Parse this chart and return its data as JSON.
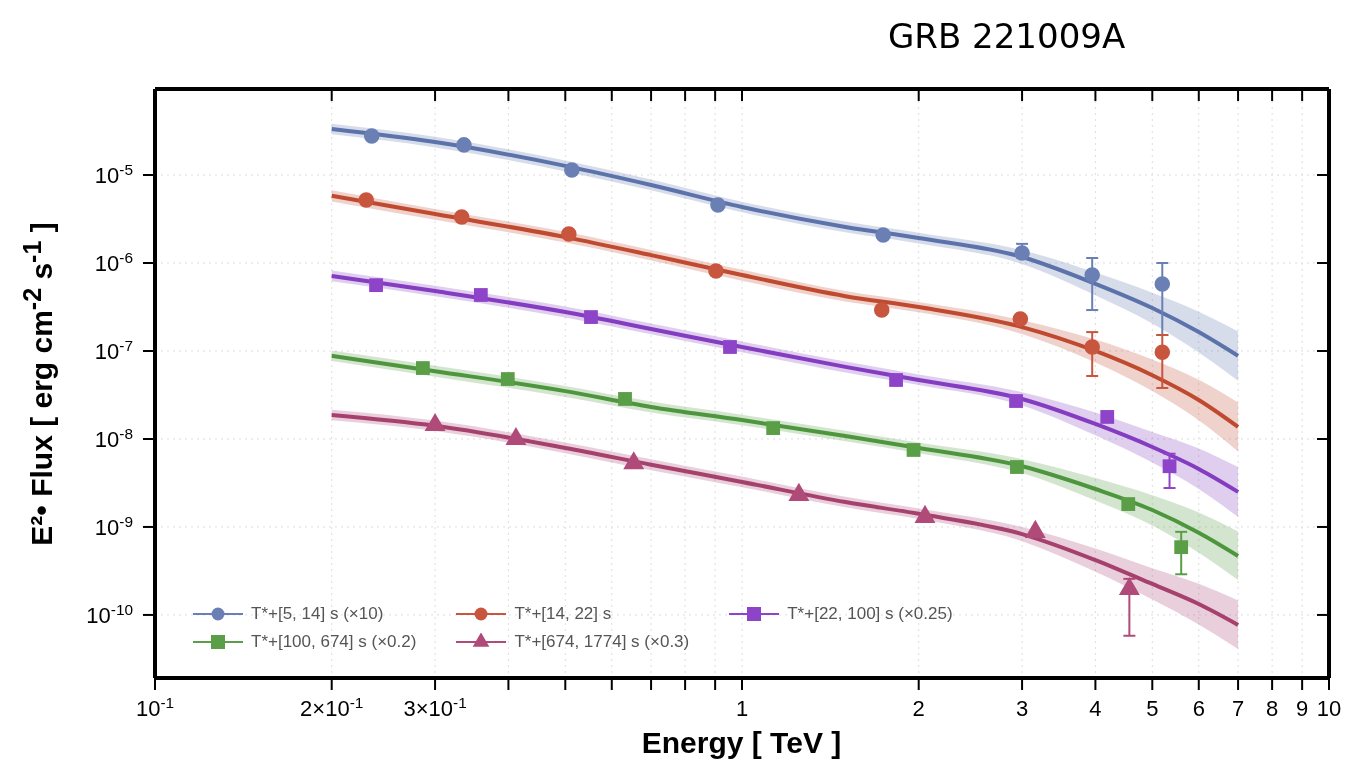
{
  "chart_data": {
    "type": "scatter",
    "title": "GRB 221009A",
    "xlabel": "Energy [ TeV ]",
    "ylabel": "E²• Flux [ erg cm$^{-2}$ s$^{-1}$ ]",
    "log": "xy",
    "grid": true,
    "legend": "bottom left",
    "xlim": [
      0.1,
      10
    ],
    "xticks": [
      {
        "value": 0.1,
        "label": "10$^{-1}$"
      },
      {
        "value": 0.2,
        "label": "2×10$^{-1}$"
      },
      {
        "value": 0.3,
        "label": "3×10$^{-1}$"
      },
      {
        "value": 0.4,
        "label": null
      },
      {
        "value": 0.5,
        "label": null
      },
      {
        "value": 0.6,
        "label": null
      },
      {
        "value": 0.7,
        "label": null
      },
      {
        "value": 0.8,
        "label": null
      },
      {
        "value": 0.9,
        "label": null
      },
      1,
      2,
      3,
      4,
      5,
      6,
      7,
      8,
      9,
      10
    ],
    "ylim": [
      1.92e-11,
      9.5e-05
    ],
    "yticks": [
      {
        "value": 1e-10,
        "label": "10$^{-10}$"
      },
      {
        "value": 1e-09,
        "label": "10$^{-9}$"
      },
      {
        "value": 1e-08,
        "label": "10$^{-8}$"
      },
      {
        "value": 1e-07,
        "label": "10$^{-7}$"
      },
      {
        "value": 1e-06,
        "label": "10$^{-6}$"
      },
      {
        "value": 1e-05,
        "label": "10$^{-5}$"
      }
    ],
    "series": [
      {
        "type": "line",
        "color": "#5c72aa",
        "x": [
          0.2,
          0.3,
          0.5,
          0.7,
          1,
          1.5,
          2,
          3,
          4,
          5,
          6,
          7
        ],
        "values": [
          3.33e-05,
          2.37e-05,
          1.27e-05,
          7.7e-06,
          4.33e-06,
          2.57e-06,
          1.92e-06,
          1.17e-06,
          5.8e-07,
          3.08e-07,
          1.64e-07,
          8.8e-08
        ],
        "lower": [
          2.9e-05,
          2.06e-05,
          1.1e-05,
          6.7e-06,
          3.77e-06,
          2.23e-06,
          1.67e-06,
          9.75e-07,
          4.3e-07,
          2.05e-07,
          9.6e-08,
          4.6e-08
        ],
        "upper": [
          3.83e-05,
          2.73e-05,
          1.46e-05,
          8.9e-06,
          4.98e-06,
          2.96e-06,
          2.21e-06,
          1.4e-06,
          7.8e-07,
          4.6e-07,
          2.8e-07,
          1.67e-07
        ]
      },
      {
        "type": "line",
        "color": "#c04a2f",
        "x": [
          0.2,
          0.3,
          0.5,
          0.7,
          1,
          1.5,
          2,
          3,
          4,
          5,
          6,
          7
        ],
        "values": [
          5.8e-06,
          3.6e-06,
          1.97e-06,
          1.23e-06,
          7.3e-07,
          4.2e-07,
          3.16e-07,
          1.87e-07,
          1e-07,
          5.3e-08,
          2.77e-08,
          1.37e-08
        ],
        "lower": [
          5e-06,
          3.1e-06,
          1.71e-06,
          1.07e-06,
          6.3e-07,
          3.65e-07,
          2.75e-07,
          1.56e-07,
          7.4e-08,
          3.5e-08,
          1.63e-08,
          7.2e-09
        ],
        "upper": [
          6.7e-06,
          4.1e-06,
          2.27e-06,
          1.41e-06,
          8.4e-07,
          4.8e-07,
          3.6e-07,
          2.24e-07,
          1.35e-07,
          8e-08,
          4.7e-08,
          2.6e-08
        ]
      },
      {
        "type": "line",
        "color": "#843cc0",
        "x": [
          0.2,
          0.3,
          0.5,
          0.7,
          1,
          1.5,
          2,
          3,
          4,
          5,
          6,
          7
        ],
        "values": [
          7.1e-07,
          4.8e-07,
          2.77e-07,
          1.78e-07,
          1.11e-07,
          6.6e-08,
          4.68e-08,
          2.85e-08,
          1.48e-08,
          8.1e-09,
          4.56e-09,
          2.5e-09
        ],
        "lower": [
          6.2e-07,
          4.2e-07,
          2.4e-07,
          1.55e-07,
          9.7e-08,
          5.7e-08,
          4.1e-08,
          2.4e-08,
          1.1e-08,
          5.4e-09,
          2.7e-09,
          1.3e-09
        ],
        "upper": [
          8.2e-07,
          5.5e-07,
          3.2e-07,
          2.05e-07,
          1.28e-07,
          7.6e-08,
          5.4e-08,
          3.4e-08,
          2e-08,
          1.2e-08,
          7.8e-09,
          4.8e-09
        ]
      },
      {
        "type": "line",
        "color": "#4e963d",
        "x": [
          0.2,
          0.3,
          0.5,
          0.7,
          1,
          1.5,
          2,
          3,
          4,
          5,
          6,
          7
        ],
        "values": [
          8.8e-08,
          5.9e-08,
          3.5e-08,
          2.31e-08,
          1.64e-08,
          1.08e-08,
          7.9e-09,
          4.9e-09,
          2.7e-09,
          1.56e-09,
          8.6e-10,
          4.68e-10
        ],
        "lower": [
          7.7e-08,
          5.1e-08,
          3e-08,
          2e-08,
          1.43e-08,
          9.4e-09,
          6.9e-09,
          4.1e-09,
          2e-09,
          1.04e-09,
          5.1e-10,
          2.5e-10
        ],
        "upper": [
          1.01e-07,
          6.8e-08,
          4e-08,
          2.66e-08,
          1.89e-08,
          1.24e-08,
          9.1e-09,
          5.9e-09,
          3.6e-09,
          2.3e-09,
          1.46e-09,
          8.9e-10
        ]
      },
      {
        "type": "line",
        "color": "#a6416e",
        "x": [
          0.2,
          0.3,
          0.5,
          0.7,
          1,
          1.5,
          2,
          3,
          4,
          5,
          6,
          7
        ],
        "values": [
          1.87e-08,
          1.41e-08,
          7.9e-09,
          5.1e-09,
          3.25e-09,
          1.92e-09,
          1.41e-09,
          8.3e-10,
          4.2e-10,
          2.25e-10,
          1.33e-10,
          7.7e-11
        ],
        "lower": [
          1.63e-08,
          1.23e-08,
          6.9e-09,
          4.4e-09,
          2.83e-09,
          1.67e-09,
          1.23e-09,
          6.9e-10,
          3.1e-10,
          1.5e-10,
          7.8e-11,
          4.1e-11
        ],
        "upper": [
          2.15e-08,
          1.62e-08,
          9.1e-09,
          5.9e-09,
          3.74e-09,
          2.2e-09,
          1.62e-09,
          1e-09,
          5.7e-10,
          3.4e-10,
          2.26e-10,
          1.46e-10
        ]
      },
      {
        "name": "T*+[5, 14] s (×10)",
        "color": "#6a80b4",
        "marker": "circle",
        "x": [
          0.234,
          0.336,
          0.513,
          0.91,
          1.74,
          3.0,
          3.95,
          5.2
        ],
        "values": [
          2.77e-05,
          2.2e-05,
          1.14e-05,
          4.56e-06,
          2.08e-06,
          1.3e-06,
          7.3e-07,
          5.77e-07
        ],
        "errors": [
          null,
          null,
          null,
          null,
          null,
          [
            1.15e-06,
            1.65e-06
          ],
          [
            2.92e-07,
            1.14e-06
          ],
          [
            1.52e-07,
            1e-06
          ]
        ]
      },
      {
        "name": "T*+[14, 22] s",
        "color": "#c8553d",
        "marker": "circle",
        "x": [
          0.229,
          0.333,
          0.507,
          0.903,
          1.73,
          2.98,
          3.95,
          5.2
        ],
        "values": [
          5.2e-06,
          3.33e-06,
          2.14e-06,
          8.1e-07,
          2.92e-07,
          2.31e-07,
          1.11e-07,
          9.7e-08
        ],
        "errors": [
          null,
          null,
          null,
          null,
          null,
          null,
          [
            5.2e-08,
            1.64e-07
          ],
          [
            3.8e-08,
            1.52e-07
          ]
        ]
      },
      {
        "name": "T*+[22, 100] s (×0.25)",
        "color": "#8e44c8",
        "marker": "square",
        "x": [
          0.238,
          0.359,
          0.553,
          0.954,
          1.83,
          2.93,
          4.19,
          5.35
        ],
        "values": [
          5.6e-07,
          4.33e-07,
          2.43e-07,
          1.11e-07,
          4.68e-08,
          2.7e-08,
          1.78e-08,
          4.9e-09
        ],
        "errors": [
          null,
          null,
          null,
          null,
          null,
          null,
          null,
          [
            2.77e-09,
            6.8e-09
          ]
        ]
      },
      {
        "name": "T*+[100, 674] s (×0.2)",
        "color": "#5a9e48",
        "marker": "square",
        "x": [
          0.286,
          0.399,
          0.632,
          1.13,
          1.96,
          2.94,
          4.55,
          5.6
        ],
        "values": [
          6.4e-08,
          4.8e-08,
          2.85e-08,
          1.33e-08,
          7.5e-09,
          4.8e-09,
          1.82e-09,
          5.9e-10
        ],
        "errors": [
          null,
          null,
          null,
          null,
          null,
          null,
          null,
          [
            2.9e-10,
            8.8e-10
          ]
        ]
      },
      {
        "name": "T*+[674, 1774] s (×0.3)",
        "color": "#b04a78",
        "marker": "triangle",
        "x": [
          0.3,
          0.412,
          0.654,
          1.25,
          2.05,
          3.16,
          4.57
        ],
        "values": [
          1.44e-08,
          1e-08,
          5.3e-09,
          2.31e-09,
          1.3e-09,
          8.8e-10,
          1.97e-10
        ],
        "errors": [
          null,
          null,
          null,
          null,
          null,
          null,
          [
            5.8e-11,
            2.57e-10
          ]
        ]
      }
    ]
  }
}
